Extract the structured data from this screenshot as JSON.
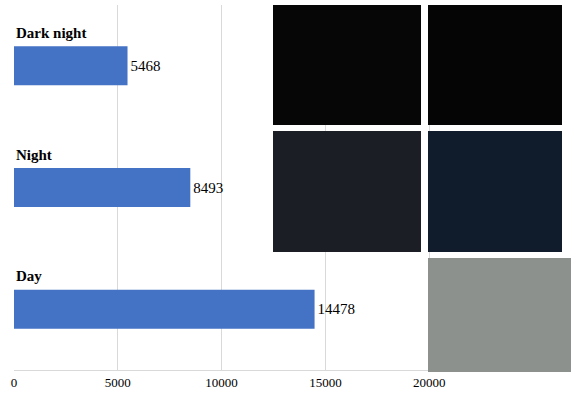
{
  "chart_data": {
    "type": "bar",
    "orientation": "horizontal",
    "categories": [
      "Dark night",
      "Night",
      "Day"
    ],
    "values": [
      5468,
      8493,
      14478
    ],
    "color": "#4472c4",
    "xlim": [
      0,
      25000
    ],
    "xticks": [
      0,
      5000,
      10000,
      15000,
      20000
    ],
    "grid": true,
    "data_labels": true,
    "tick_labels": "x"
  }
}
